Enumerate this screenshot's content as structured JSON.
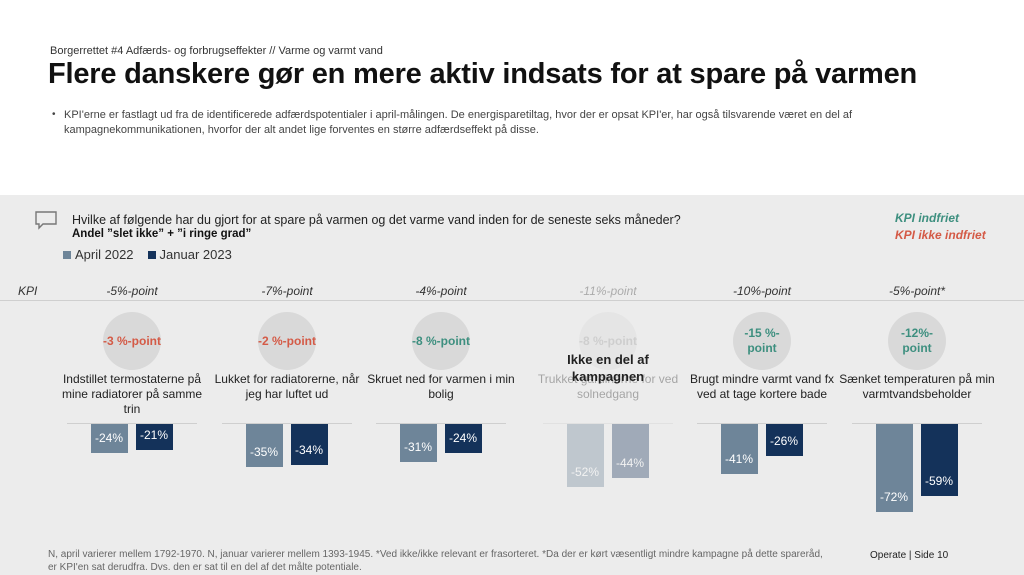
{
  "header": {
    "supertitle": "Borgerrettet #4 Adfærds- og forbrugseffekter // Varme og varmt vand",
    "title": "Flere danskere gør en mere aktiv indsats for at spare på varmen",
    "bullet": "KPI'erne er fastlagt ud fra de identificerede adfærdspotentialer i april-målingen. De energisparetiltag, hvor der er opsat KPI'er, har også tilsvarende været en del af kampagnekommunikationen, hvorfor der alt andet lige forventes en større adfærdseffekt på disse."
  },
  "panel": {
    "question": "Hvilke af følgende har du gjort for at spare på varmen og det varme vand inden for de seneste seks måneder?",
    "subquestion": "Andel ”slet ikke” + ”i ringe grad”",
    "kpi_ok": "KPI indfriet",
    "kpi_not_ok": "KPI ikke indfriet",
    "kpi_label": "KPI",
    "overlay": "Ikke en del af kampagnen"
  },
  "colors": {
    "april": "#6e8599",
    "januar": "#14325a",
    "ok": "#3d8f7f",
    "not_ok": "#d45a46"
  },
  "chart_data": {
    "type": "bar",
    "categories": [
      "Indstillet termostaterne på mine radiatorer på samme trin",
      "Lukket for radiatorerne, når jeg har luftet ud",
      "Skruet ned for varmen i min bolig",
      "Trukket gardinerne for ved solnedgang",
      "Brugt mindre varmt vand fx ved at tage kortere bade",
      "Sænket temperaturen på min varmtvandsbeholder"
    ],
    "series": [
      {
        "name": "April 2022",
        "values": [
          -24,
          -35,
          -31,
          -52,
          -41,
          -72
        ],
        "labels": [
          "-24%",
          "-35%",
          "-31%",
          "-52%",
          "-41%",
          "-72%"
        ]
      },
      {
        "name": "Januar 2023",
        "values": [
          -21,
          -34,
          -24,
          -44,
          -26,
          -59
        ],
        "labels": [
          "-21%",
          "-34%",
          "-24%",
          "-44%",
          "-26%",
          "-59%"
        ]
      }
    ],
    "kpi_targets": [
      "-5%-point",
      "-7%-point",
      "-4%-point",
      "-11%-point",
      "-10%-point",
      "-5%-point*"
    ],
    "changes": [
      "-3 %-point",
      "-2 %-point",
      "-8 %-point",
      "-8 %-point",
      "-15 %-point",
      "-12%-point"
    ],
    "change_status": [
      "not_ok",
      "not_ok",
      "ok",
      "none",
      "ok",
      "ok"
    ],
    "ylim": [
      -80,
      0
    ]
  },
  "footer": {
    "note": "N, april varierer mellem 1792-1970. N, januar varierer mellem 1393-1945. *Ved ikke/ikke relevant er frasorteret. *Da der er kørt væsentligt mindre kampagne på dette sparеråd, er KPI'en sat derudfra. Dvs. den er sat til en del af det målte potentiale.",
    "brand": "Operate  |  Side 10"
  }
}
